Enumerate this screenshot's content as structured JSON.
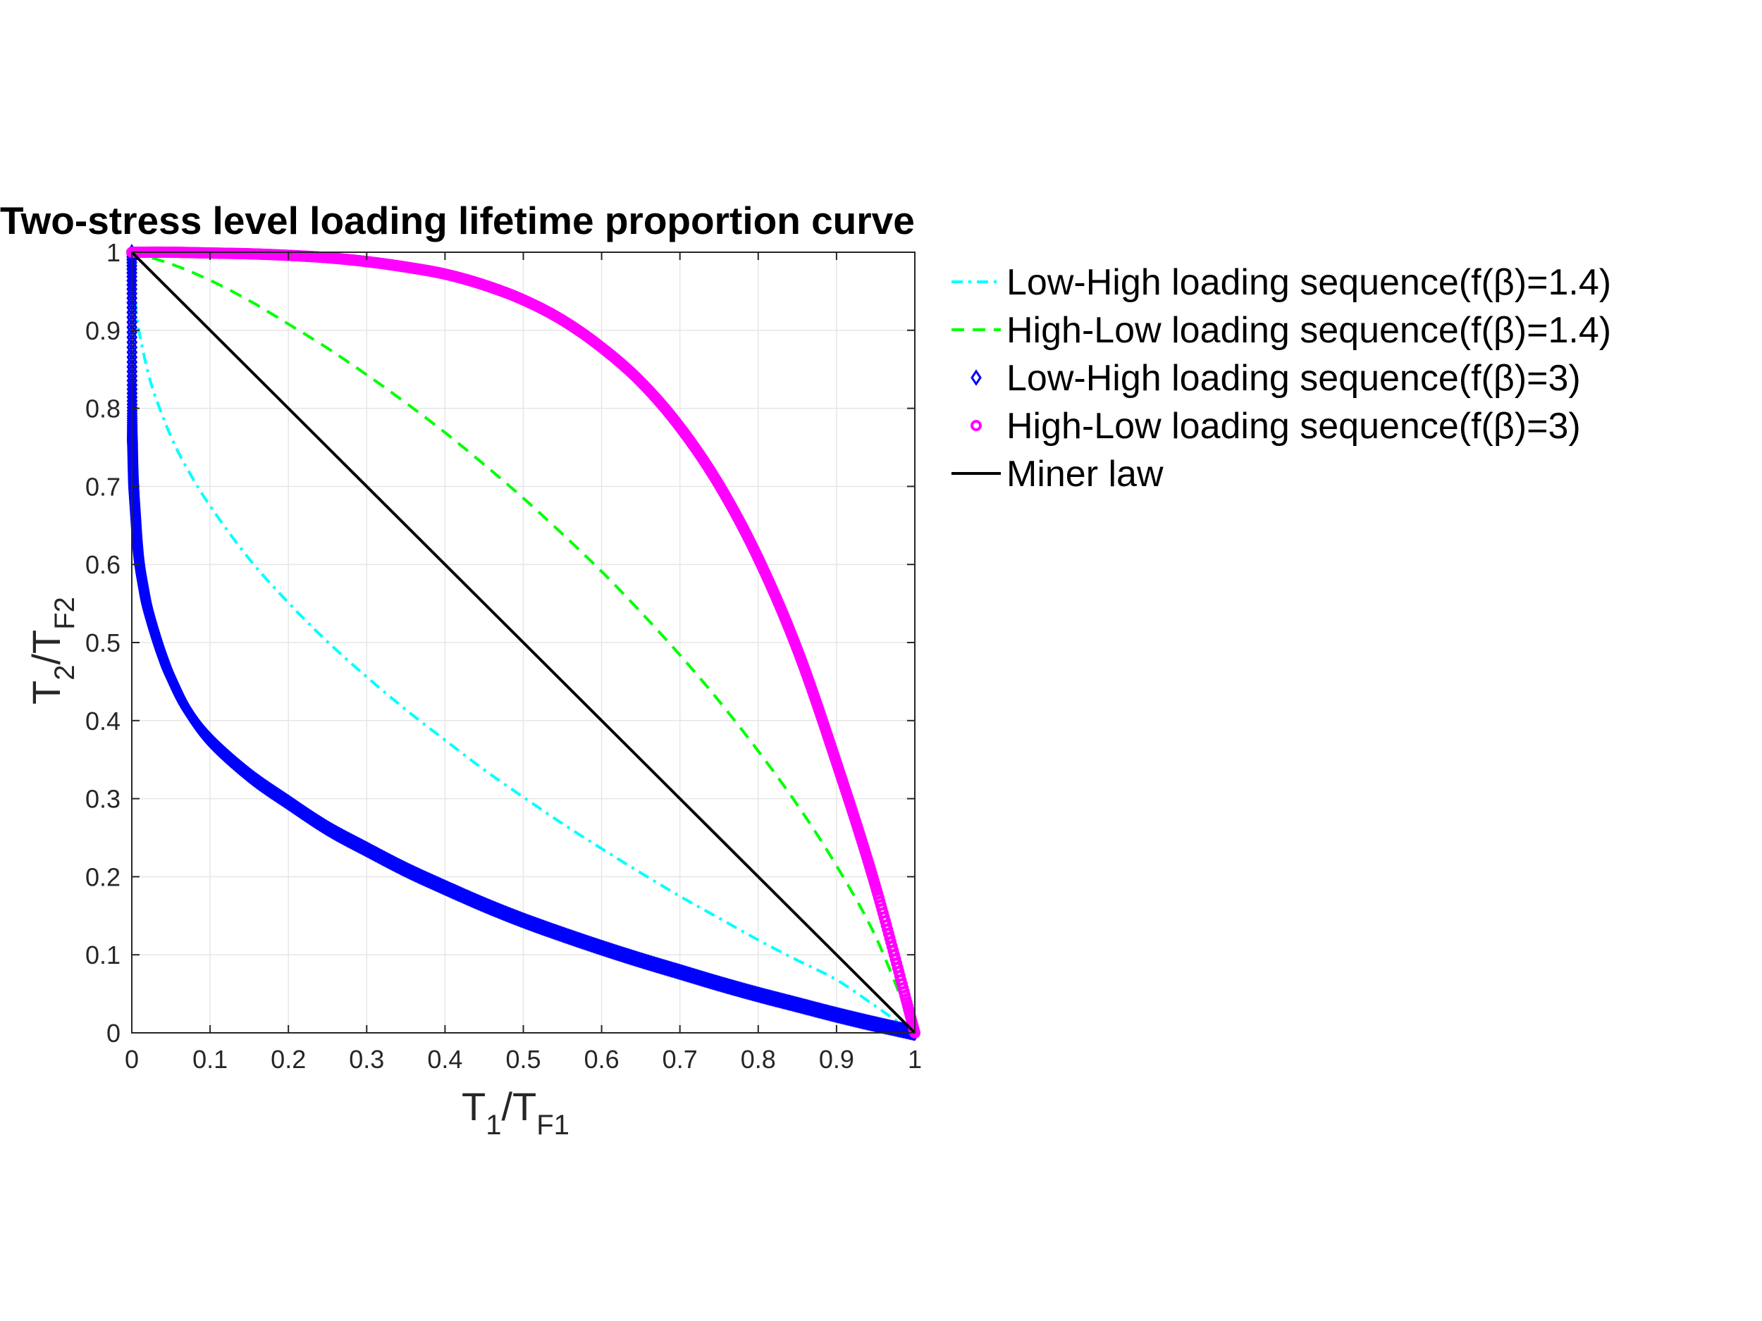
{
  "chart_data": {
    "type": "line",
    "title": "Two-stress level loading lifetime proportion curve",
    "xlabel": {
      "main": "T",
      "sub1": "1",
      "slash": "/T",
      "sub2": "F1"
    },
    "ylabel": {
      "main": "T",
      "sub1": "2",
      "slash": "/T",
      "sub2": "F2"
    },
    "xlim": [
      0,
      1
    ],
    "ylim": [
      0,
      1
    ],
    "xticks": [
      0,
      0.1,
      0.2,
      0.3,
      0.4,
      0.5,
      0.6,
      0.7,
      0.8,
      0.9,
      1
    ],
    "xtick_labels": [
      "0",
      "0.1",
      "0.2",
      "0.3",
      "0.4",
      "0.5",
      "0.6",
      "0.7",
      "0.8",
      "0.9",
      "1"
    ],
    "yticks": [
      0,
      0.1,
      0.2,
      0.3,
      0.4,
      0.5,
      0.6,
      0.7,
      0.8,
      0.9,
      1
    ],
    "ytick_labels": [
      "0",
      "0.1",
      "0.2",
      "0.3",
      "0.4",
      "0.5",
      "0.6",
      "0.7",
      "0.8",
      "0.9",
      "1"
    ],
    "grid": true,
    "legend_position": "outside-right",
    "series": [
      {
        "name": "Low-High loading sequence(f(β)=1.4)",
        "color": "#00ffff",
        "style": "dash-dot",
        "x": [
          0,
          0.005,
          0.01,
          0.02,
          0.03,
          0.05,
          0.07,
          0.1,
          0.15,
          0.2,
          0.25,
          0.3,
          0.35,
          0.4,
          0.45,
          0.5,
          0.55,
          0.6,
          0.65,
          0.7,
          0.75,
          0.8,
          0.85,
          0.9,
          0.95,
          0.98,
          1
        ],
        "y": [
          1,
          0.93,
          0.895,
          0.849,
          0.815,
          0.764,
          0.724,
          0.675,
          0.607,
          0.551,
          0.501,
          0.456,
          0.414,
          0.375,
          0.337,
          0.302,
          0.268,
          0.236,
          0.205,
          0.175,
          0.147,
          0.119,
          0.093,
          0.068,
          0.034,
          0.013,
          0
        ]
      },
      {
        "name": "High-Low loading sequence(f(β)=1.4)",
        "color": "#00ff00",
        "style": "dash",
        "x": [
          0,
          0.05,
          0.1,
          0.15,
          0.2,
          0.25,
          0.3,
          0.35,
          0.4,
          0.45,
          0.5,
          0.55,
          0.6,
          0.65,
          0.7,
          0.75,
          0.8,
          0.85,
          0.9,
          0.95,
          1
        ],
        "y": [
          1,
          0.985,
          0.964,
          0.938,
          0.908,
          0.877,
          0.843,
          0.807,
          0.769,
          0.728,
          0.685,
          0.639,
          0.591,
          0.539,
          0.484,
          0.425,
          0.361,
          0.292,
          0.214,
          0.123,
          0
        ]
      },
      {
        "name": "Low-High loading sequence(f(β)=3)",
        "color": "#0000ff",
        "style": "diamond-markers",
        "x": [
          0,
          0.0005,
          0.001,
          0.002,
          0.003,
          0.005,
          0.007,
          0.01,
          0.015,
          0.02,
          0.03,
          0.04,
          0.05,
          0.07,
          0.1,
          0.15,
          0.2,
          0.25,
          0.3,
          0.35,
          0.4,
          0.45,
          0.5,
          0.55,
          0.6,
          0.65,
          0.7,
          0.75,
          0.8,
          0.85,
          0.9,
          0.95,
          1
        ],
        "y": [
          1,
          0.79,
          0.75,
          0.71,
          0.69,
          0.66,
          0.63,
          0.6,
          0.57,
          0.545,
          0.51,
          0.48,
          0.455,
          0.415,
          0.375,
          0.33,
          0.295,
          0.262,
          0.235,
          0.209,
          0.186,
          0.164,
          0.144,
          0.126,
          0.109,
          0.093,
          0.078,
          0.063,
          0.049,
          0.036,
          0.023,
          0.011,
          0
        ]
      },
      {
        "name": "High-Low loading sequence(f(β)=3)",
        "color": "#ff00ff",
        "style": "circle-markers",
        "x": [
          0,
          0.05,
          0.1,
          0.15,
          0.2,
          0.25,
          0.3,
          0.35,
          0.4,
          0.45,
          0.5,
          0.55,
          0.6,
          0.65,
          0.7,
          0.75,
          0.8,
          0.85,
          0.9,
          0.95,
          1
        ],
        "y": [
          1,
          1.0,
          0.999,
          0.998,
          0.996,
          0.993,
          0.988,
          0.981,
          0.972,
          0.958,
          0.939,
          0.913,
          0.878,
          0.834,
          0.776,
          0.702,
          0.608,
          0.491,
          0.346,
          0.187,
          0
        ]
      },
      {
        "name": "Miner law",
        "color": "#000000",
        "style": "solid",
        "x": [
          0,
          1
        ],
        "y": [
          1,
          0
        ]
      }
    ]
  }
}
